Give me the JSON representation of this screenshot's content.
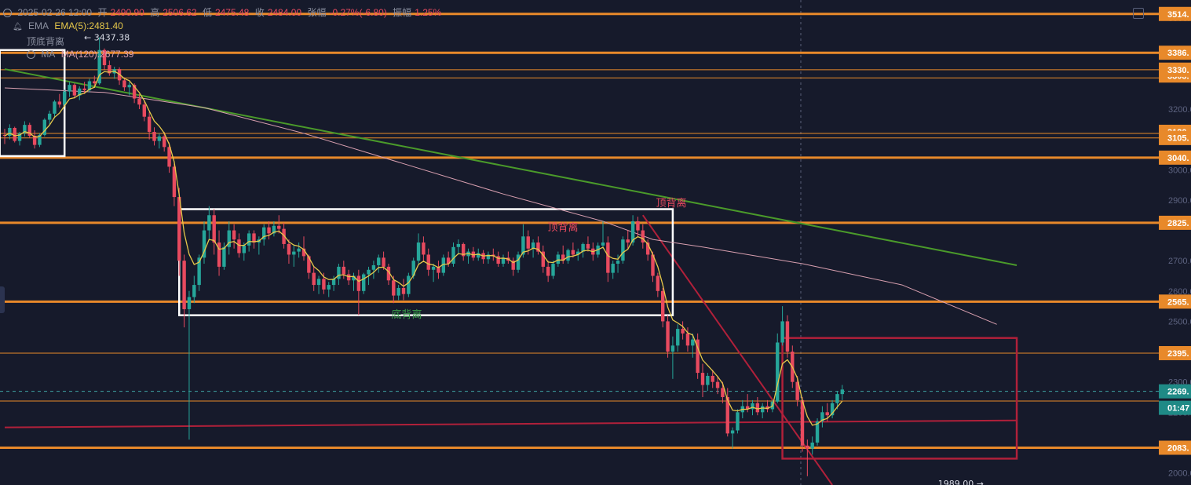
{
  "header": {
    "datetime": "2025-02-26 12:00",
    "open_label": "开",
    "open": "2490.90",
    "high_label": "高",
    "high": "2506.62",
    "low_label": "低",
    "low": "2475.48",
    "close_label": "收",
    "close": "2484.00",
    "change_label": "张幅",
    "change": "-0.27%(-6.80)",
    "amp_label": "振幅",
    "amp": "1.25%"
  },
  "indicators": {
    "ema_name": "EMA",
    "ema_value": "EMA(5):2481.40",
    "divergence_name": "顶底背离",
    "ma_name": "MA",
    "ma_value": "MA(120):2677.39"
  },
  "colors": {
    "background": "#161a2b",
    "up": "#26a69a",
    "down": "#e84a5f",
    "orange": "#e8892a",
    "ema": "#e6c84a",
    "ma": "#d9a0b0",
    "trend_green": "#4a9a2a",
    "trend_red": "#b0203a",
    "label_bg": "#e8892a"
  },
  "chart_data": {
    "type": "candlestick",
    "ylim": [
      1960,
      3560
    ],
    "y_ticks": [
      2000,
      2100,
      2200,
      2300,
      2400,
      2500,
      2600,
      2700,
      2800,
      2900,
      3000,
      3100,
      3200,
      3300,
      3400,
      3500
    ],
    "y_tick_labels": [
      "2000.00",
      "",
      "2200.00",
      "2300.00",
      "",
      "2500.00",
      "2600.00",
      "2700.00",
      "",
      "2900.00",
      "3000.00",
      "",
      "3200.00",
      "",
      "",
      "3500.00"
    ],
    "horizontal_levels": [
      {
        "value": 3514,
        "label": "3514.",
        "weight": "thick"
      },
      {
        "value": 3386,
        "label": "3386.",
        "weight": "thick"
      },
      {
        "value": 3330,
        "label": "3330.",
        "weight": "thin"
      },
      {
        "value": 3303,
        "label": "3303.",
        "weight": "thin"
      },
      {
        "value": 3120,
        "label": "3120.",
        "weight": "thin"
      },
      {
        "value": 3105,
        "label": "3105.",
        "weight": "thin"
      },
      {
        "value": 3040,
        "label": "3040.",
        "weight": "thick"
      },
      {
        "value": 2825,
        "label": "2825.",
        "weight": "thick"
      },
      {
        "value": 2565,
        "label": "2565.",
        "weight": "thick"
      },
      {
        "value": 2395,
        "label": "2395.",
        "weight": "thin"
      },
      {
        "value": 2083,
        "label": "2083.",
        "weight": "thick"
      }
    ],
    "current_price": {
      "value": 2269,
      "label": "2269.",
      "countdown": "01:47"
    },
    "annotations": [
      {
        "text": "← 3437.38",
        "price": 3437.38
      },
      {
        "text": "1989.00 →",
        "price": 1989.0
      },
      {
        "text": "顶背离",
        "color": "#e84a5f"
      },
      {
        "text": "顶背离",
        "color": "#e84a5f"
      },
      {
        "text": "底背离",
        "color": "#3aa04a"
      }
    ],
    "candles": [
      [
        3115,
        3135,
        3085,
        3112
      ],
      [
        3112,
        3150,
        3100,
        3138
      ],
      [
        3138,
        3142,
        3090,
        3095
      ],
      [
        3095,
        3125,
        3080,
        3120
      ],
      [
        3120,
        3160,
        3110,
        3148
      ],
      [
        3148,
        3155,
        3105,
        3112
      ],
      [
        3112,
        3130,
        3070,
        3082
      ],
      [
        3082,
        3120,
        3075,
        3115
      ],
      [
        3115,
        3170,
        3110,
        3165
      ],
      [
        3165,
        3195,
        3150,
        3185
      ],
      [
        3185,
        3230,
        3170,
        3225
      ],
      [
        3225,
        3250,
        3205,
        3215
      ],
      [
        3215,
        3265,
        3210,
        3258
      ],
      [
        3258,
        3290,
        3240,
        3280
      ],
      [
        3280,
        3285,
        3235,
        3245
      ],
      [
        3245,
        3275,
        3230,
        3268
      ],
      [
        3268,
        3290,
        3250,
        3262
      ],
      [
        3262,
        3300,
        3255,
        3292
      ],
      [
        3292,
        3310,
        3270,
        3285
      ],
      [
        3285,
        3437,
        3280,
        3395
      ],
      [
        3395,
        3400,
        3330,
        3345
      ],
      [
        3345,
        3360,
        3310,
        3318
      ],
      [
        3318,
        3340,
        3300,
        3332
      ],
      [
        3332,
        3338,
        3280,
        3295
      ],
      [
        3295,
        3305,
        3260,
        3272
      ],
      [
        3272,
        3290,
        3245,
        3280
      ],
      [
        3280,
        3285,
        3220,
        3235
      ],
      [
        3235,
        3250,
        3200,
        3215
      ],
      [
        3215,
        3225,
        3160,
        3175
      ],
      [
        3175,
        3190,
        3100,
        3125
      ],
      [
        3125,
        3140,
        3080,
        3095
      ],
      [
        3095,
        3120,
        3070,
        3110
      ],
      [
        3110,
        3125,
        3060,
        3075
      ],
      [
        3075,
        3090,
        2990,
        3010
      ],
      [
        3010,
        3020,
        2880,
        2910
      ],
      [
        2910,
        2940,
        2650,
        2700
      ],
      [
        2700,
        2720,
        2480,
        2540
      ],
      [
        2540,
        2600,
        2110,
        2580
      ],
      [
        2580,
        2650,
        2560,
        2620
      ],
      [
        2620,
        2720,
        2600,
        2710
      ],
      [
        2710,
        2830,
        2690,
        2800
      ],
      [
        2800,
        2880,
        2770,
        2850
      ],
      [
        2850,
        2870,
        2720,
        2760
      ],
      [
        2760,
        2800,
        2650,
        2680
      ],
      [
        2680,
        2760,
        2670,
        2745
      ],
      [
        2745,
        2830,
        2720,
        2800
      ],
      [
        2800,
        2820,
        2740,
        2770
      ],
      [
        2770,
        2790,
        2710,
        2725
      ],
      [
        2725,
        2760,
        2700,
        2750
      ],
      [
        2750,
        2800,
        2730,
        2790
      ],
      [
        2790,
        2800,
        2740,
        2760
      ],
      [
        2760,
        2780,
        2720,
        2770
      ],
      [
        2770,
        2820,
        2750,
        2810
      ],
      [
        2810,
        2830,
        2770,
        2790
      ],
      [
        2790,
        2830,
        2780,
        2815
      ],
      [
        2815,
        2850,
        2790,
        2805
      ],
      [
        2805,
        2825,
        2740,
        2755
      ],
      [
        2755,
        2770,
        2690,
        2720
      ],
      [
        2720,
        2750,
        2680,
        2730
      ],
      [
        2730,
        2760,
        2710,
        2740
      ],
      [
        2740,
        2780,
        2700,
        2715
      ],
      [
        2715,
        2720,
        2640,
        2660
      ],
      [
        2660,
        2680,
        2600,
        2620
      ],
      [
        2620,
        2650,
        2590,
        2640
      ],
      [
        2640,
        2660,
        2590,
        2605
      ],
      [
        2605,
        2630,
        2580,
        2620
      ],
      [
        2620,
        2650,
        2600,
        2640
      ],
      [
        2640,
        2690,
        2620,
        2680
      ],
      [
        2680,
        2700,
        2640,
        2655
      ],
      [
        2655,
        2670,
        2620,
        2635
      ],
      [
        2635,
        2660,
        2600,
        2650
      ],
      [
        2650,
        2670,
        2520,
        2600
      ],
      [
        2600,
        2660,
        2590,
        2655
      ],
      [
        2655,
        2680,
        2620,
        2670
      ],
      [
        2670,
        2700,
        2640,
        2685
      ],
      [
        2685,
        2720,
        2660,
        2710
      ],
      [
        2710,
        2730,
        2670,
        2680
      ],
      [
        2680,
        2690,
        2620,
        2635
      ],
      [
        2635,
        2650,
        2560,
        2585
      ],
      [
        2585,
        2620,
        2570,
        2610
      ],
      [
        2610,
        2640,
        2570,
        2590
      ],
      [
        2590,
        2660,
        2580,
        2650
      ],
      [
        2650,
        2710,
        2640,
        2700
      ],
      [
        2700,
        2790,
        2690,
        2760
      ],
      [
        2760,
        2780,
        2700,
        2720
      ],
      [
        2720,
        2740,
        2650,
        2670
      ],
      [
        2670,
        2690,
        2630,
        2680
      ],
      [
        2680,
        2700,
        2640,
        2660
      ],
      [
        2660,
        2720,
        2650,
        2710
      ],
      [
        2710,
        2730,
        2680,
        2690
      ],
      [
        2690,
        2760,
        2680,
        2745
      ],
      [
        2745,
        2770,
        2720,
        2755
      ],
      [
        2755,
        2760,
        2700,
        2715
      ],
      [
        2715,
        2740,
        2690,
        2730
      ],
      [
        2730,
        2745,
        2700,
        2710
      ],
      [
        2710,
        2740,
        2700,
        2725
      ],
      [
        2725,
        2735,
        2690,
        2705
      ],
      [
        2705,
        2730,
        2690,
        2720
      ],
      [
        2720,
        2740,
        2700,
        2715
      ],
      [
        2715,
        2730,
        2680,
        2690
      ],
      [
        2690,
        2720,
        2680,
        2710
      ],
      [
        2710,
        2730,
        2690,
        2700
      ],
      [
        2700,
        2710,
        2650,
        2670
      ],
      [
        2670,
        2730,
        2660,
        2720
      ],
      [
        2720,
        2820,
        2710,
        2780
      ],
      [
        2780,
        2800,
        2720,
        2740
      ],
      [
        2740,
        2770,
        2710,
        2760
      ],
      [
        2760,
        2780,
        2720,
        2730
      ],
      [
        2730,
        2750,
        2660,
        2680
      ],
      [
        2680,
        2700,
        2630,
        2650
      ],
      [
        2650,
        2700,
        2640,
        2690
      ],
      [
        2690,
        2730,
        2680,
        2720
      ],
      [
        2720,
        2750,
        2690,
        2700
      ],
      [
        2700,
        2740,
        2690,
        2735
      ],
      [
        2735,
        2760,
        2710,
        2720
      ],
      [
        2720,
        2740,
        2700,
        2730
      ],
      [
        2730,
        2760,
        2710,
        2755
      ],
      [
        2755,
        2780,
        2730,
        2740
      ],
      [
        2740,
        2760,
        2700,
        2720
      ],
      [
        2720,
        2760,
        2710,
        2750
      ],
      [
        2750,
        2830,
        2740,
        2760
      ],
      [
        2760,
        2780,
        2630,
        2660
      ],
      [
        2660,
        2700,
        2640,
        2690
      ],
      [
        2690,
        2720,
        2660,
        2700
      ],
      [
        2700,
        2780,
        2690,
        2770
      ],
      [
        2770,
        2800,
        2740,
        2760
      ],
      [
        2760,
        2850,
        2750,
        2830
      ],
      [
        2830,
        2845,
        2780,
        2800
      ],
      [
        2800,
        2820,
        2740,
        2760
      ],
      [
        2760,
        2770,
        2700,
        2720
      ],
      [
        2720,
        2730,
        2630,
        2650
      ],
      [
        2650,
        2660,
        2580,
        2600
      ],
      [
        2600,
        2610,
        2480,
        2500
      ],
      [
        2500,
        2520,
        2380,
        2400
      ],
      [
        2400,
        2450,
        2310,
        2420
      ],
      [
        2420,
        2490,
        2400,
        2475
      ],
      [
        2475,
        2500,
        2440,
        2460
      ],
      [
        2460,
        2480,
        2400,
        2420
      ],
      [
        2420,
        2460,
        2380,
        2440
      ],
      [
        2440,
        2460,
        2310,
        2330
      ],
      [
        2330,
        2360,
        2250,
        2290
      ],
      [
        2290,
        2330,
        2270,
        2320
      ],
      [
        2320,
        2340,
        2280,
        2300
      ],
      [
        2300,
        2320,
        2260,
        2280
      ],
      [
        2280,
        2300,
        2230,
        2250
      ],
      [
        2250,
        2280,
        2120,
        2130
      ],
      [
        2130,
        2150,
        2080,
        2140
      ],
      [
        2140,
        2210,
        2130,
        2200
      ],
      [
        2200,
        2240,
        2180,
        2220
      ],
      [
        2220,
        2260,
        2200,
        2210
      ],
      [
        2210,
        2240,
        2190,
        2230
      ],
      [
        2230,
        2250,
        2190,
        2200
      ],
      [
        2200,
        2230,
        2180,
        2220
      ],
      [
        2220,
        2240,
        2200,
        2210
      ],
      [
        2210,
        2240,
        2200,
        2235
      ],
      [
        2235,
        2460,
        2230,
        2430
      ],
      [
        2430,
        2550,
        2420,
        2500
      ],
      [
        2500,
        2520,
        2380,
        2400
      ],
      [
        2400,
        2420,
        2280,
        2300
      ],
      [
        2300,
        2320,
        2220,
        2240
      ],
      [
        2240,
        2250,
        2070,
        2090
      ],
      [
        2090,
        2110,
        1989,
        2080
      ],
      [
        2080,
        2120,
        2060,
        2100
      ],
      [
        2100,
        2180,
        2090,
        2170
      ],
      [
        2170,
        2220,
        2150,
        2200
      ],
      [
        2200,
        2230,
        2170,
        2190
      ],
      [
        2190,
        2240,
        2180,
        2230
      ],
      [
        2230,
        2270,
        2210,
        2260
      ],
      [
        2260,
        2290,
        2240,
        2275
      ]
    ],
    "ema5_label": "EMA(5)",
    "ma120": [
      [
        0,
        3270
      ],
      [
        20,
        3255
      ],
      [
        40,
        3205
      ],
      [
        60,
        3120
      ],
      [
        80,
        3020
      ],
      [
        100,
        2920
      ],
      [
        120,
        2830
      ],
      [
        130,
        2770
      ],
      [
        140,
        2745
      ],
      [
        160,
        2690
      ],
      [
        180,
        2620
      ],
      [
        199,
        2490
      ]
    ],
    "trend_lines": [
      {
        "color": "green",
        "from": [
          0,
          3332
        ],
        "to": [
          203,
          2685
        ]
      },
      {
        "color": "dark-red",
        "from": [
          0,
          2150
        ],
        "to": [
          203,
          2173
        ]
      },
      {
        "color": "dark-red",
        "from": [
          128,
          2850
        ],
        "to": [
          166,
          1960
        ]
      }
    ],
    "boxes": [
      {
        "color": "white",
        "from": [
          -1,
          3395
        ],
        "to": [
          12,
          3045
        ]
      },
      {
        "color": "white",
        "from": [
          35,
          2870
        ],
        "to": [
          134,
          2520
        ]
      },
      {
        "color": "dark-red",
        "from": [
          156,
          2445
        ],
        "to": [
          203,
          2047
        ]
      }
    ],
    "grid": false
  }
}
